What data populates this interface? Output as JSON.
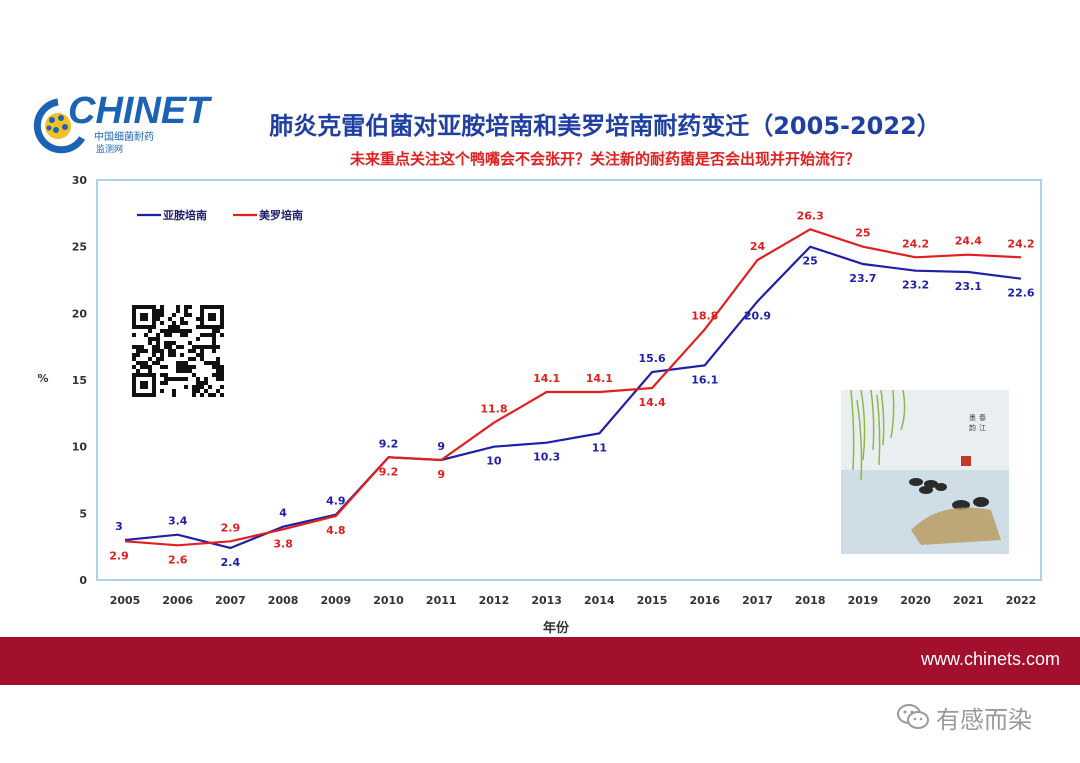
{
  "logo": {
    "word": "CHINET",
    "sub1": "中国细菌耐药",
    "sub2": "监测网"
  },
  "title": "肺炎克雷伯菌对亚胺培南和美罗培南耐药变迁（2005-2022）",
  "subtitle": "未来重点关注这个鸭嘴会不会张开？关注新的耐药菌是否会出现并开始流行？",
  "footer": {
    "url": "www.chinets.com"
  },
  "watermark": {
    "text": "有感而染",
    "icon": "wechat-icon"
  },
  "colors": {
    "title": "#1f3fa3",
    "subtitle": "#e02020",
    "series_blue": "#1f1fa8",
    "series_red": "#e02020",
    "footer": "#a3102e",
    "frame": "#a9d6ea"
  },
  "chart_data": {
    "type": "line",
    "x": [
      "2005",
      "2006",
      "2007",
      "2008",
      "2009",
      "2010",
      "2011",
      "2012",
      "2013",
      "2014",
      "2015",
      "2016",
      "2017",
      "2018",
      "2019",
      "2020",
      "2021",
      "2022"
    ],
    "series": [
      {
        "name": "亚胺培南",
        "color": "#1f1fa8",
        "values": [
          3,
          3.4,
          2.4,
          4,
          4.9,
          9.2,
          9,
          10,
          10.3,
          11,
          15.6,
          16.1,
          20.9,
          25,
          23.7,
          23.2,
          23.1,
          22.6
        ]
      },
      {
        "name": "美罗培南",
        "color": "#e02020",
        "values": [
          2.9,
          2.6,
          2.9,
          3.8,
          4.8,
          9.2,
          9,
          11.8,
          14.1,
          14.1,
          14.4,
          18.8,
          24,
          26.3,
          25,
          24.2,
          24.4,
          24.2
        ]
      }
    ],
    "xlabel": "年份",
    "ylabel": "%",
    "ylim": [
      0,
      30
    ],
    "yticks": [
      0,
      5,
      10,
      15,
      20,
      25,
      30
    ],
    "grid": false,
    "legend_position": "top-left"
  }
}
